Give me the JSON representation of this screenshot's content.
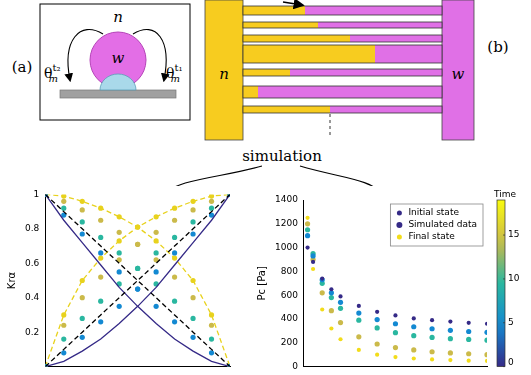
{
  "panel_a": {
    "label": "(a)",
    "phase_outer": "n",
    "phase_drop": "w",
    "angle_left": {
      "base": "θ",
      "sub": "m",
      "sup": "t₂"
    },
    "angle_right": {
      "base": "θ",
      "sub": "m",
      "sup": "t₁"
    }
  },
  "panel_b": {
    "label": "(b)",
    "left_reservoir": "n",
    "right_reservoir": "w"
  },
  "arrow_label": "simulation",
  "chart_data": [
    {
      "type": "line",
      "ylabel": "Krα",
      "xlim": [
        0,
        1
      ],
      "ylim": [
        0,
        1
      ],
      "yticks": [
        0.2,
        0.4,
        0.6,
        0.8,
        1
      ],
      "tick_labels": "y",
      "grid": false,
      "x": [
        0,
        0.1,
        0.2,
        0.3,
        0.4,
        0.5,
        0.6,
        0.7,
        0.8,
        0.9,
        1
      ],
      "series": [
        {
          "type": "line",
          "color": "#000000",
          "line_style": "dashed",
          "marker": "none",
          "values": [
            1,
            0.9,
            0.8,
            0.7,
            0.6,
            0.5,
            0.4,
            0.3,
            0.2,
            0.1,
            0
          ]
        },
        {
          "type": "line",
          "color": "#000000",
          "line_style": "dashed",
          "marker": "none",
          "values": [
            0,
            0.1,
            0.2,
            0.3,
            0.4,
            0.5,
            0.6,
            0.7,
            0.8,
            0.9,
            1
          ]
        },
        {
          "type": "line",
          "color": "#352a87",
          "line_style": "solid",
          "marker": "none",
          "values": [
            1,
            0.85,
            0.72,
            0.59,
            0.46,
            0.35,
            0.25,
            0.16,
            0.09,
            0.03,
            0
          ]
        },
        {
          "type": "line",
          "color": "#352a87",
          "line_style": "solid",
          "marker": "none",
          "values": [
            0,
            0.03,
            0.09,
            0.16,
            0.25,
            0.35,
            0.46,
            0.59,
            0.72,
            0.85,
            1
          ]
        },
        {
          "type": "scatter",
          "color": "#1389d2",
          "line_style": "none",
          "marker": "circle",
          "values": [
            1,
            0.88,
            0.77,
            0.66,
            0.55,
            0.45,
            0.35,
            0.26,
            0.17,
            0.08,
            0
          ]
        },
        {
          "type": "scatter",
          "color": "#1389d2",
          "line_style": "none",
          "marker": "circle",
          "values": [
            0,
            0.08,
            0.17,
            0.26,
            0.35,
            0.45,
            0.55,
            0.66,
            0.77,
            0.88,
            1
          ]
        },
        {
          "type": "scatter",
          "color": "#2ab7a0",
          "line_style": "none",
          "marker": "circle",
          "values": [
            1,
            0.92,
            0.84,
            0.75,
            0.66,
            0.57,
            0.48,
            0.38,
            0.28,
            0.16,
            0
          ]
        },
        {
          "type": "scatter",
          "color": "#2ab7a0",
          "line_style": "none",
          "marker": "circle",
          "values": [
            0,
            0.16,
            0.28,
            0.38,
            0.48,
            0.57,
            0.66,
            0.75,
            0.84,
            0.92,
            1
          ]
        },
        {
          "type": "scatter",
          "color": "#cbba4a",
          "line_style": "none",
          "marker": "circle",
          "values": [
            1,
            0.96,
            0.91,
            0.85,
            0.78,
            0.71,
            0.62,
            0.52,
            0.4,
            0.24,
            0
          ]
        },
        {
          "type": "scatter",
          "color": "#cbba4a",
          "line_style": "none",
          "marker": "circle",
          "values": [
            0,
            0.24,
            0.4,
            0.52,
            0.62,
            0.71,
            0.78,
            0.85,
            0.91,
            0.96,
            1
          ]
        },
        {
          "type": "line",
          "color": "#e8d21d",
          "line_style": "dashed",
          "marker": "circle",
          "values": [
            1,
            0.99,
            0.96,
            0.92,
            0.87,
            0.81,
            0.73,
            0.63,
            0.5,
            0.3,
            0
          ]
        },
        {
          "type": "line",
          "color": "#e8d21d",
          "line_style": "dashed",
          "marker": "circle",
          "values": [
            0,
            0.3,
            0.5,
            0.63,
            0.73,
            0.81,
            0.87,
            0.92,
            0.96,
            0.99,
            1
          ]
        }
      ]
    },
    {
      "type": "scatter",
      "ylabel": "Pc [Pa]",
      "xlim": [
        0,
        1
      ],
      "ylim": [
        0,
        1400
      ],
      "yticks": [
        0,
        200,
        400,
        600,
        800,
        1000,
        1200,
        1400
      ],
      "tick_labels": "y",
      "grid": false,
      "legend": "upper right",
      "x": [
        0.02,
        0.05,
        0.1,
        0.15,
        0.2,
        0.3,
        0.4,
        0.5,
        0.6,
        0.7,
        0.8,
        0.9,
        1
      ],
      "series": [
        {
          "name": "Initial state",
          "color": "#352a87",
          "marker": "point",
          "values": [
            1000,
            880,
            740,
            650,
            590,
            510,
            460,
            430,
            405,
            390,
            378,
            368,
            360
          ]
        },
        {
          "name": "Simulated data",
          "color": "#352a87",
          "marker": "circle",
          "sets": [
            {
              "color": "#1389d2",
              "values": [
                1100,
                930,
                730,
                620,
                540,
                450,
                395,
                360,
                335,
                318,
                305,
                295,
                288
              ]
            },
            {
              "color": "#2ab7a0",
              "values": [
                1150,
                950,
                700,
                580,
                490,
                390,
                325,
                285,
                260,
                245,
                235,
                228,
                222
              ]
            },
            {
              "color": "#cbba4a",
              "values": [
                1200,
                900,
                620,
                470,
                370,
                250,
                190,
                160,
                140,
                125,
                115,
                108,
                100
              ]
            }
          ]
        },
        {
          "name": "Final state",
          "color": "#f2dc1a",
          "marker": "point",
          "values": [
            1250,
            820,
            480,
            320,
            230,
            140,
            100,
            80,
            68,
            60,
            55,
            50,
            48
          ]
        }
      ],
      "colorbar": {
        "title": "Time",
        "range": [
          0,
          19
        ],
        "ticks": [
          0,
          5,
          10,
          15
        ]
      }
    }
  ]
}
